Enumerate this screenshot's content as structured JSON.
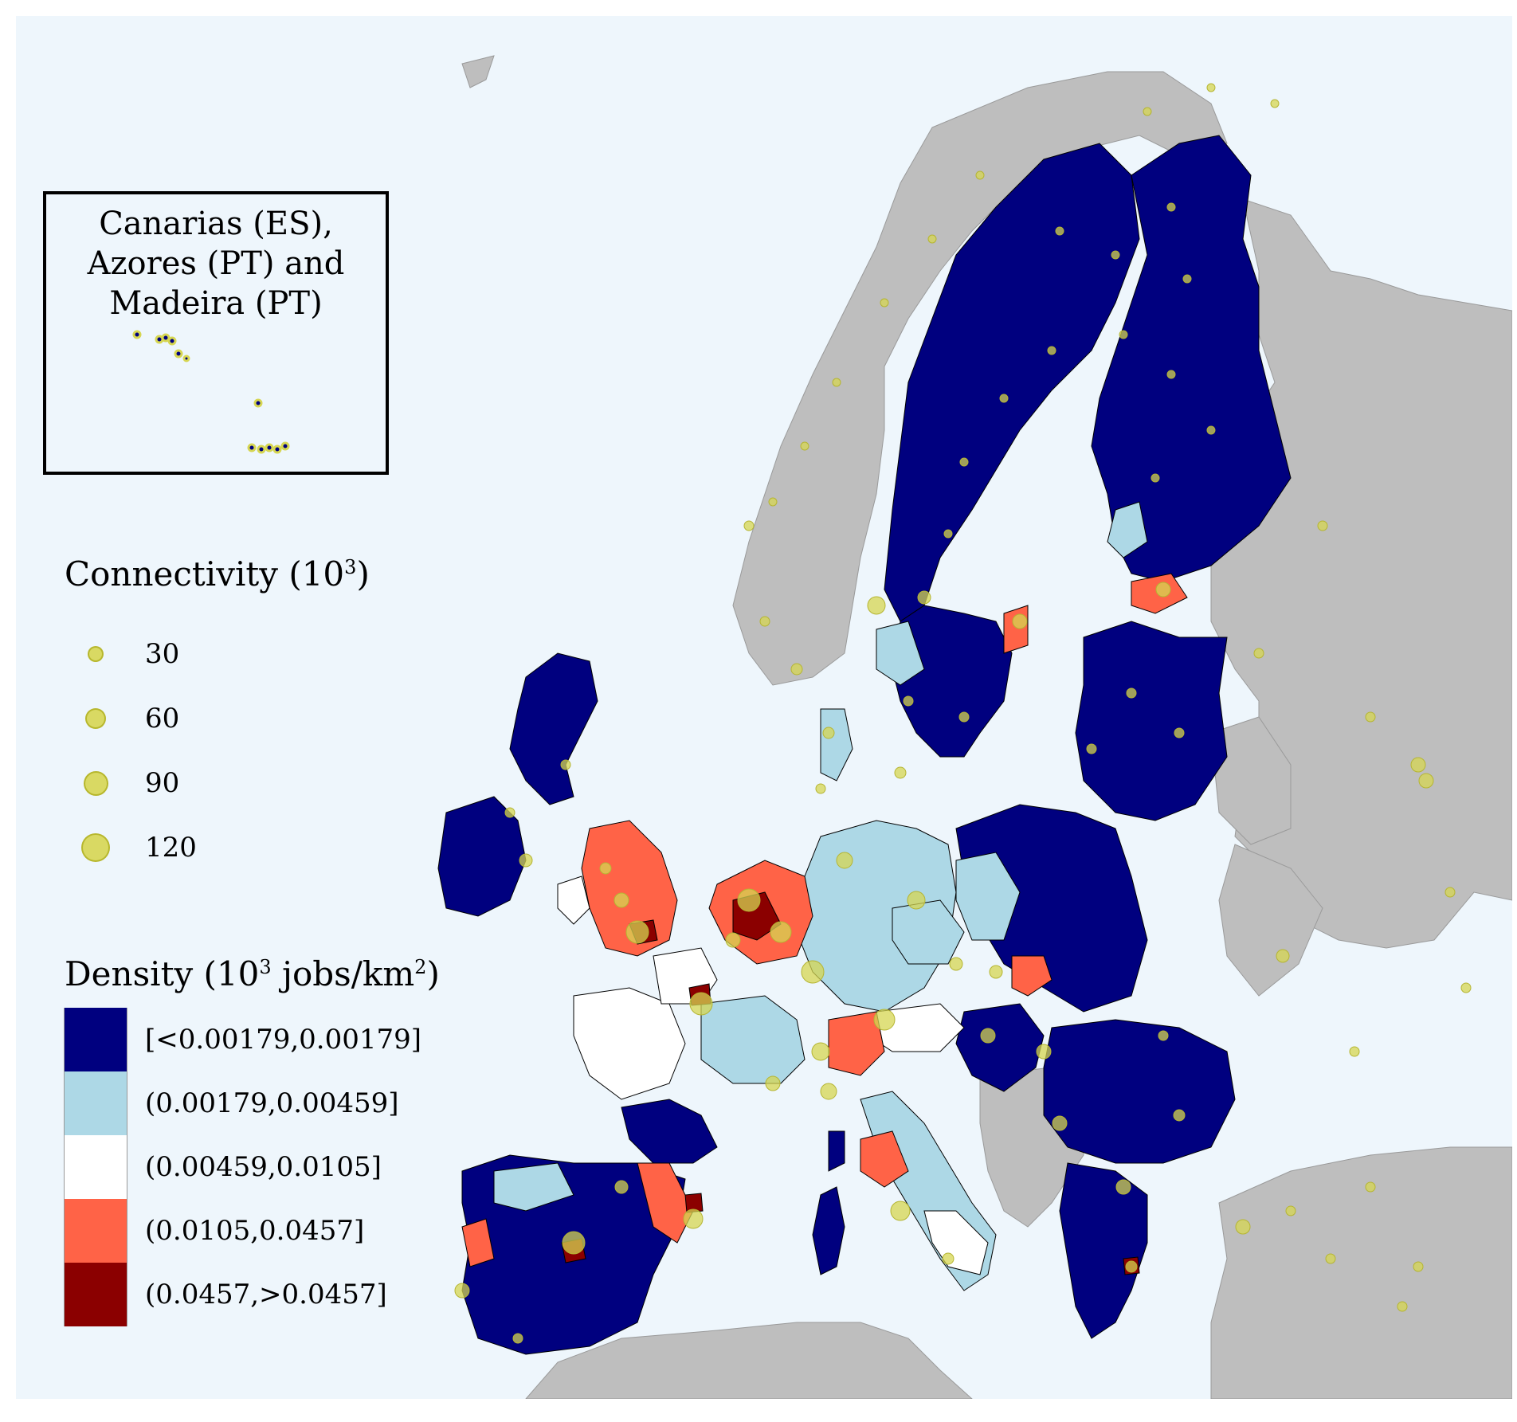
{
  "inset": {
    "title": "Canarias (ES),\nAzores (PT) and\nMadeira (PT)"
  },
  "connectivity_legend": {
    "title": "Connectivity (10",
    "title_sup": "3",
    "title_end": ")",
    "items": [
      {
        "label": "30",
        "value": 30
      },
      {
        "label": "60",
        "value": 60
      },
      {
        "label": "90",
        "value": 90
      },
      {
        "label": "120",
        "value": 120
      }
    ]
  },
  "density_legend": {
    "title_a": "Density (10",
    "title_sup1": "3",
    "title_b": " jobs/km",
    "title_sup2": "2",
    "title_c": ")",
    "classes": [
      {
        "label": "[<0.00179,0.00179]",
        "color": "#00007f"
      },
      {
        "label": "(0.00179,0.00459]",
        "color": "#add8e6"
      },
      {
        "label": "(0.00459,0.0105]",
        "color": "#ffffff"
      },
      {
        "label": "(0.0105,0.0457]",
        "color": "#ff6347"
      },
      {
        "label": "(0.0457,>0.0457]",
        "color": "#8b0000"
      }
    ]
  },
  "colors": {
    "sea": "#eef6fc",
    "non_eu_land": "#bebebe",
    "connectivity_dot": "#d6d652",
    "region_border": "#000000"
  }
}
